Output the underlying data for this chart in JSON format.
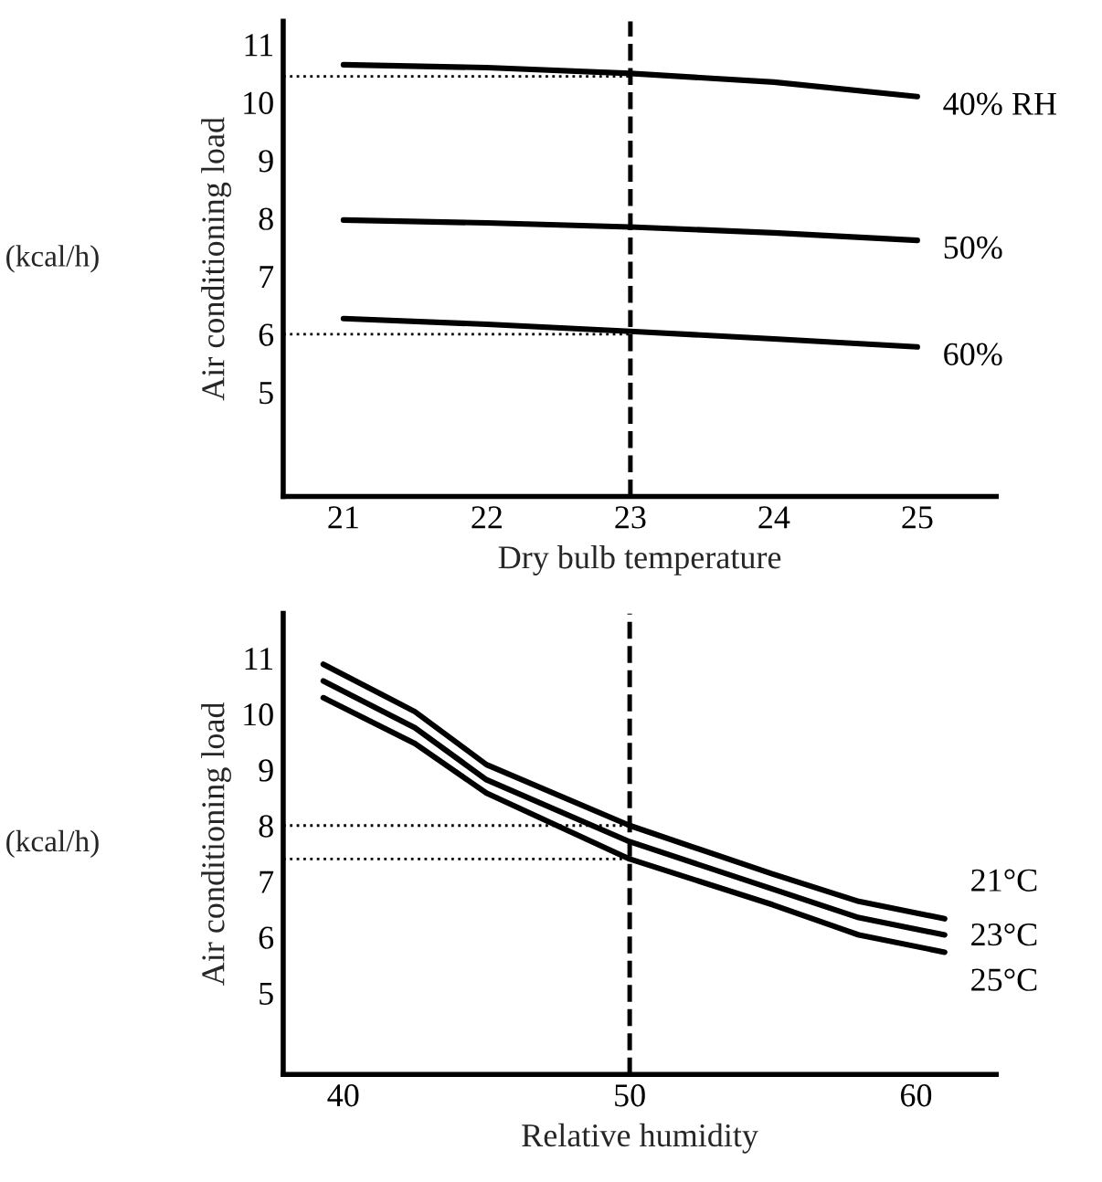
{
  "chart_data": [
    {
      "type": "line",
      "xlabel": "Dry bulb temperature",
      "ylabel": "Air conditioning load",
      "annotations": [
        "(kcal/h)"
      ],
      "x": [
        21,
        22,
        23,
        24,
        25
      ],
      "xlim": [
        20.58,
        25.55
      ],
      "ylim": [
        3.2,
        11.4
      ],
      "xticks": [
        21,
        22,
        23,
        24,
        25
      ],
      "yticks": [
        5,
        6,
        7,
        8,
        9,
        10,
        11
      ],
      "grid": false,
      "legend": false,
      "marker": "none",
      "line_style": "solid",
      "series": [
        {
          "name": "40% RH",
          "color": "#000000",
          "values": [
            10.65,
            10.6,
            10.5,
            10.35,
            10.1
          ]
        },
        {
          "name": "50%",
          "color": "#000000",
          "values": [
            7.97,
            7.92,
            7.85,
            7.75,
            7.62
          ]
        },
        {
          "name": "60%",
          "color": "#000000",
          "values": [
            6.27,
            6.17,
            6.05,
            5.92,
            5.78
          ]
        }
      ],
      "ref_lines": [
        {
          "axis": "x",
          "value": 23,
          "line_style": "dashed",
          "color": "#000000"
        },
        {
          "axis": "y",
          "value": 10.45,
          "line_style": "dotted",
          "color": "#000000"
        },
        {
          "axis": "y",
          "value": 6.0,
          "line_style": "dotted",
          "color": "#000000"
        }
      ]
    },
    {
      "type": "line",
      "xlabel": "Relative humidity",
      "ylabel": "Air conditioning load",
      "annotations": [
        "(kcal/h)"
      ],
      "x": [
        39.3,
        42.5,
        45,
        50,
        55,
        58,
        61
      ],
      "xlim": [
        37.9,
        62.8
      ],
      "ylim": [
        3.54,
        11.8
      ],
      "xticks": [
        40,
        50,
        60
      ],
      "yticks": [
        5,
        6,
        7,
        8,
        9,
        10,
        11
      ],
      "grid": false,
      "legend": false,
      "marker": "none",
      "line_style": "solid",
      "series": [
        {
          "name": "21°C",
          "color": "#000000",
          "values": [
            10.89,
            10.04,
            9.09,
            8.0,
            7.13,
            6.64,
            6.33
          ]
        },
        {
          "name": "23°C",
          "color": "#000000",
          "values": [
            10.59,
            9.75,
            8.82,
            7.71,
            6.86,
            6.35,
            6.04
          ]
        },
        {
          "name": "25°C",
          "color": "#000000",
          "values": [
            10.29,
            9.47,
            8.58,
            7.4,
            6.58,
            6.04,
            5.73
          ]
        }
      ],
      "ref_lines": [
        {
          "axis": "x",
          "value": 50,
          "line_style": "dashed",
          "color": "#000000"
        },
        {
          "axis": "y",
          "value": 8.0,
          "line_style": "dotted",
          "color": "#000000"
        },
        {
          "axis": "y",
          "value": 7.4,
          "line_style": "dotted",
          "color": "#000000"
        }
      ]
    }
  ]
}
